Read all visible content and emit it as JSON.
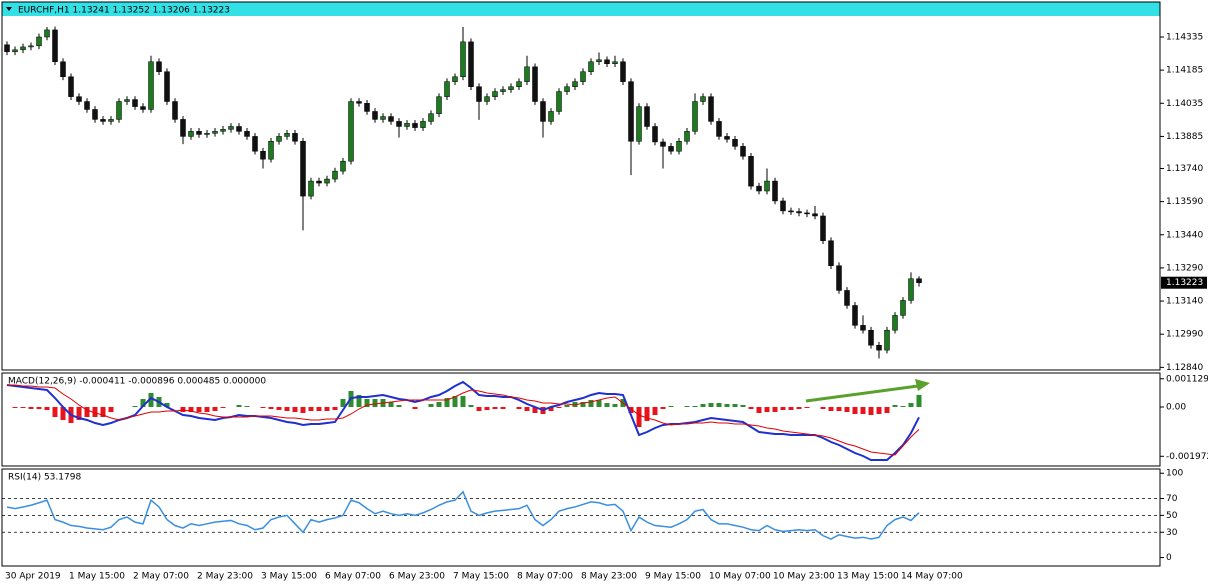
{
  "chart_data": [
    {
      "type": "candlestick",
      "title": "EURCHF,H1  1.13241 1.13252 1.13206 1.13223",
      "categories": [
        "30 Apr 2019",
        null,
        null,
        null,
        null,
        null,
        null,
        null,
        "1 May 15:00",
        null,
        null,
        null,
        null,
        null,
        null,
        null,
        "2 May 07:00",
        null,
        null,
        null,
        null,
        null,
        null,
        null,
        "2 May 23:00",
        null,
        null,
        null,
        null,
        null,
        null,
        null,
        "3 May 15:00",
        null,
        null,
        null,
        null,
        null,
        null,
        null,
        "6 May 07:00",
        null,
        null,
        null,
        null,
        null,
        null,
        null,
        "6 May 23:00",
        null,
        null,
        null,
        null,
        null,
        null,
        null,
        "7 May 15:00",
        null,
        null,
        null,
        null,
        null,
        null,
        null,
        "8 May 07:00",
        null,
        null,
        null,
        null,
        null,
        null,
        null,
        "8 May 23:00",
        null,
        null,
        null,
        null,
        null,
        null,
        null,
        "9 May 15:00",
        null,
        null,
        null,
        null,
        null,
        null,
        null,
        "10 May 07:00",
        null,
        null,
        null,
        null,
        null,
        null,
        null,
        "10 May 23:00",
        null,
        null,
        null,
        null,
        null,
        null,
        null,
        "13 May 15:00",
        null,
        null,
        null,
        null,
        null,
        null,
        null,
        "14 May 07:00",
        null,
        null
      ],
      "open": [
        1.143,
        1.14268,
        1.14277,
        1.1429,
        1.14295,
        1.14335,
        1.14367,
        1.14223,
        1.14155,
        1.14065,
        1.14043,
        1.14007,
        1.13962,
        1.13953,
        1.13962,
        1.14043,
        1.14052,
        1.1402,
        1.14007,
        1.14223,
        1.14178,
        1.14043,
        1.13962,
        1.13885,
        1.13908,
        1.13894,
        1.13899,
        1.13908,
        1.13917,
        1.1393,
        1.13908,
        1.13885,
        1.13818,
        1.13782,
        1.13863,
        1.13885,
        1.13899,
        1.13863,
        1.13615,
        1.13683,
        1.13674,
        1.13692,
        1.13728,
        1.13773,
        1.14043,
        1.14035,
        1.13998,
        1.13962,
        1.13975,
        1.13953,
        1.1393,
        1.13944,
        1.13925,
        1.13953,
        1.13988,
        1.14065,
        1.14133,
        1.14155,
        1.14313,
        1.1411,
        1.14043,
        1.14065,
        1.14088,
        1.14097,
        1.1411,
        1.14133,
        1.142,
        1.14043,
        1.13953,
        1.13998,
        1.14088,
        1.1411,
        1.14133,
        1.14178,
        1.14223,
        1.14232,
        1.14214,
        1.14223,
        1.14133,
        1.13863,
        1.1402,
        1.1393,
        1.1386,
        1.1384,
        1.13818,
        1.13863,
        1.13908,
        1.14043,
        1.14065,
        1.13953,
        1.13885,
        1.13872,
        1.1384,
        1.13795,
        1.1366,
        1.13638,
        1.13683,
        1.13593,
        1.13548,
        1.13545,
        1.13539,
        1.13535,
        1.13525,
        1.13413,
        1.133,
        1.13188,
        1.1312,
        1.1303,
        1.13008,
        1.1294,
        1.12918,
        1.13008,
        1.13075,
        1.13143,
        1.13241
      ],
      "high": [
        1.14315,
        1.14292,
        1.14305,
        1.1431,
        1.1435,
        1.1438,
        1.14382,
        1.14238,
        1.1417,
        1.1408,
        1.14058,
        1.14022,
        1.13977,
        1.13977,
        1.14058,
        1.14067,
        1.14067,
        1.14035,
        1.1425,
        1.14238,
        1.14193,
        1.14058,
        1.13977,
        1.13923,
        1.13923,
        1.13914,
        1.13923,
        1.13932,
        1.13945,
        1.13945,
        1.13923,
        1.139,
        1.13833,
        1.13878,
        1.139,
        1.13914,
        1.13914,
        1.13878,
        1.13698,
        1.13698,
        1.13707,
        1.13743,
        1.13788,
        1.14058,
        1.14058,
        1.1405,
        1.14013,
        1.1399,
        1.1399,
        1.13968,
        1.13959,
        1.13959,
        1.13968,
        1.14003,
        1.1408,
        1.14148,
        1.1417,
        1.1438,
        1.14328,
        1.14125,
        1.1408,
        1.14103,
        1.14112,
        1.14125,
        1.14148,
        1.1425,
        1.14215,
        1.14058,
        1.14013,
        1.14103,
        1.14125,
        1.14148,
        1.14193,
        1.14238,
        1.14265,
        1.14247,
        1.1425,
        1.14238,
        1.14148,
        1.14035,
        1.14035,
        1.13945,
        1.13875,
        1.13855,
        1.13878,
        1.13923,
        1.1408,
        1.1408,
        1.1408,
        1.13968,
        1.139,
        1.13887,
        1.13855,
        1.1381,
        1.13675,
        1.1374,
        1.13698,
        1.13608,
        1.13563,
        1.1356,
        1.13554,
        1.1357,
        1.1354,
        1.13428,
        1.13315,
        1.13203,
        1.13135,
        1.13075,
        1.13023,
        1.12955,
        1.13023,
        1.1309,
        1.13158,
        1.1327,
        1.13252
      ],
      "low": [
        1.14253,
        1.14253,
        1.14262,
        1.14275,
        1.1428,
        1.1432,
        1.14208,
        1.1414,
        1.1405,
        1.14028,
        1.13992,
        1.13947,
        1.13938,
        1.13938,
        1.13947,
        1.14028,
        1.14005,
        1.13992,
        1.13992,
        1.14163,
        1.14028,
        1.13947,
        1.1385,
        1.1387,
        1.13879,
        1.13879,
        1.13884,
        1.13893,
        1.13902,
        1.13893,
        1.1387,
        1.13803,
        1.1374,
        1.13767,
        1.13848,
        1.1387,
        1.13848,
        1.1346,
        1.136,
        1.13659,
        1.13659,
        1.13677,
        1.13713,
        1.13758,
        1.1402,
        1.13983,
        1.13947,
        1.13947,
        1.13938,
        1.1388,
        1.13915,
        1.1391,
        1.1391,
        1.13938,
        1.13973,
        1.1405,
        1.14118,
        1.1414,
        1.14095,
        1.1396,
        1.14028,
        1.1405,
        1.14073,
        1.14082,
        1.14095,
        1.14118,
        1.14028,
        1.1388,
        1.13938,
        1.13983,
        1.14073,
        1.14095,
        1.14118,
        1.14163,
        1.14208,
        1.14199,
        1.14199,
        1.14118,
        1.1371,
        1.13848,
        1.13915,
        1.13845,
        1.1374,
        1.13803,
        1.13803,
        1.13848,
        1.13893,
        1.14028,
        1.13938,
        1.1387,
        1.13857,
        1.13825,
        1.1378,
        1.13645,
        1.13623,
        1.13623,
        1.13578,
        1.13533,
        1.1353,
        1.13524,
        1.1352,
        1.1351,
        1.13398,
        1.13285,
        1.13173,
        1.13105,
        1.13015,
        1.12993,
        1.12925,
        1.1288,
        1.12903,
        1.12993,
        1.1306,
        1.13128,
        1.13206
      ],
      "close": [
        1.14268,
        1.14277,
        1.1429,
        1.14295,
        1.14335,
        1.14367,
        1.14223,
        1.14155,
        1.14065,
        1.14043,
        1.14007,
        1.13962,
        1.13953,
        1.13962,
        1.14043,
        1.14052,
        1.1402,
        1.14007,
        1.14223,
        1.14178,
        1.14043,
        1.13962,
        1.13885,
        1.13908,
        1.13894,
        1.13899,
        1.13908,
        1.13917,
        1.1393,
        1.13908,
        1.13885,
        1.13818,
        1.13782,
        1.13863,
        1.13885,
        1.13899,
        1.13863,
        1.13615,
        1.13683,
        1.13674,
        1.13692,
        1.13728,
        1.13773,
        1.14043,
        1.14035,
        1.13998,
        1.13962,
        1.13975,
        1.13953,
        1.1393,
        1.13944,
        1.13925,
        1.13953,
        1.13988,
        1.14065,
        1.14133,
        1.14155,
        1.14313,
        1.1411,
        1.14043,
        1.14065,
        1.14088,
        1.14097,
        1.1411,
        1.14133,
        1.142,
        1.14043,
        1.13953,
        1.13998,
        1.14088,
        1.1411,
        1.14133,
        1.14178,
        1.14223,
        1.14232,
        1.14214,
        1.14223,
        1.14133,
        1.13863,
        1.1402,
        1.1393,
        1.1386,
        1.1384,
        1.13818,
        1.13863,
        1.13908,
        1.14043,
        1.14065,
        1.13953,
        1.13885,
        1.13872,
        1.1384,
        1.13795,
        1.1366,
        1.13638,
        1.13683,
        1.13593,
        1.13548,
        1.13545,
        1.13539,
        1.13535,
        1.13525,
        1.13413,
        1.133,
        1.13188,
        1.1312,
        1.1303,
        1.13008,
        1.1294,
        1.12918,
        1.13008,
        1.13075,
        1.13143,
        1.13241,
        1.13223
      ],
      "bull_color": "#1e7a1e",
      "bear_color": "#111111",
      "ylim": [
        1.12828,
        1.1443
      ],
      "yticks": [
        1.14335,
        1.14185,
        1.14035,
        1.13885,
        {
          "value": 1.1374,
          "label": "1.13740"
        },
        {
          "value": 1.1359,
          "label": "1.13590"
        },
        {
          "value": 1.1344,
          "label": "1.13440"
        },
        {
          "value": 1.1329,
          "label": "1.13290"
        },
        {
          "value": 1.1314,
          "label": "1.13140"
        },
        {
          "value": 1.1299,
          "label": "1.12990"
        },
        {
          "value": 1.1284,
          "label": "1.12840"
        }
      ]
    },
    {
      "type": "macd",
      "title": "MACD(12,26,9) -0.000411 -0.000896 0.000485 0.000000",
      "histogram": {
        "color_up": "#2e8b2e",
        "color_down": "#e8141c",
        "values": [
          0,
          -4e-05,
          -4e-05,
          -8e-05,
          -8e-05,
          -0.00012,
          -0.0004,
          -0.00052,
          -0.00064,
          -0.00052,
          -0.0004,
          -0.0004,
          -0.0004,
          -0.0002,
          0,
          0,
          4e-05,
          0.00032,
          0.00056,
          0.0004,
          0.00016,
          0,
          -0.0002,
          -0.0002,
          -0.0002,
          -0.0002,
          -0.00016,
          -4e-05,
          0,
          8e-05,
          4e-05,
          0,
          -4e-05,
          -8e-05,
          -0.00012,
          -0.00016,
          -0.0002,
          -0.00024,
          -0.00016,
          -0.00016,
          -0.00016,
          -0.00012,
          0.00032,
          0.00064,
          0.00048,
          0.00032,
          0.00032,
          0.00032,
          0.0002,
          8e-05,
          0,
          -8e-05,
          0,
          0.00012,
          0.0002,
          0.00036,
          0.00044,
          0.00044,
          8e-05,
          -0.00016,
          -0.00012,
          -8e-05,
          -8e-05,
          0,
          -8e-05,
          -0.00016,
          -0.00024,
          -0.00028,
          -0.00016,
          -4e-05,
          8e-05,
          0.0002,
          0.0002,
          0.00028,
          0.00028,
          0.00016,
          0.00012,
          0.00032,
          -0.00024,
          -0.0008,
          -0.00056,
          -0.00032,
          -8e-05,
          4e-05,
          0,
          4e-05,
          4e-05,
          0.00012,
          0.00016,
          0.00016,
          0.00012,
          0.00012,
          8e-05,
          -8e-05,
          -0.00024,
          -0.0002,
          -0.0002,
          -0.00012,
          -0.00012,
          -8e-05,
          -4e-05,
          0,
          -8e-05,
          -0.00016,
          -0.00016,
          -0.0002,
          -0.00028,
          -0.00028,
          -0.00032,
          -0.00028,
          -0.00024,
          8e-05,
          4e-05,
          0.00016,
          0.000485
        ]
      },
      "series": [
        {
          "color": "#1f2fd0",
          "values": [
            0.00088,
            0.00084,
            0.0008,
            0.00076,
            0.00072,
            0.00068,
            0.00036,
            0,
            -0.00032,
            -0.00044,
            -0.00052,
            -0.00064,
            -0.00072,
            -0.00064,
            -0.00052,
            -0.00044,
            -0.00032,
            4e-05,
            0.00036,
            0.0002,
            0,
            -0.00016,
            -0.00032,
            -0.00036,
            -0.00044,
            -0.00048,
            -0.00052,
            -0.00044,
            -0.0004,
            -0.00032,
            -0.00036,
            -0.00036,
            -0.0004,
            -0.00044,
            -0.00052,
            -0.0006,
            -0.00064,
            -0.00072,
            -0.00068,
            -0.00068,
            -0.00064,
            -0.0006,
            -0.00012,
            0.00036,
            0.0004,
            0.0004,
            0.00044,
            0.00048,
            0.0004,
            0.00032,
            0.00028,
            0.0002,
            0.00028,
            0.0004,
            0.00048,
            0.00064,
            0.00084,
            0.001,
            0.00076,
            0.00048,
            0.00044,
            0.00044,
            0.0004,
            0.0004,
            0.00028,
            0.00012,
            0,
            -0.00012,
            0,
            8e-05,
            0.0002,
            0.00028,
            0.00036,
            0.00048,
            0.00056,
            0.00052,
            0.00052,
            0.00048,
            -0.00032,
            -0.00112,
            -0.001,
            -0.00084,
            -0.00072,
            -0.00068,
            -0.00068,
            -0.00064,
            -0.0006,
            -0.00052,
            -0.00044,
            -0.00048,
            -0.00052,
            -0.00056,
            -0.0006,
            -0.0008,
            -0.001,
            -0.00104,
            -0.00108,
            -0.00108,
            -0.00112,
            -0.00112,
            -0.00112,
            -0.00112,
            -0.00124,
            -0.0014,
            -0.00152,
            -0.00168,
            -0.00184,
            -0.00196,
            -0.00212,
            -0.00212,
            -0.00212,
            -0.00184,
            -0.00152,
            -0.00104,
            -0.000411
          ]
        },
        {
          "color": "#e00000",
          "values": [
            0.00088,
            0.00088,
            0.00084,
            0.00084,
            0.0008,
            0.0008,
            0.00076,
            0.00052,
            0.00032,
            8e-05,
            -0.00012,
            -0.00024,
            -0.00032,
            -0.00044,
            -0.00052,
            -0.00044,
            -0.00036,
            -0.00028,
            -0.0002,
            -0.0002,
            -0.00016,
            -0.00016,
            -0.00012,
            -0.00016,
            -0.00024,
            -0.00028,
            -0.00036,
            -0.0004,
            -0.0004,
            -0.0004,
            -0.0004,
            -0.00036,
            -0.00036,
            -0.00036,
            -0.0004,
            -0.00044,
            -0.00044,
            -0.00048,
            -0.00052,
            -0.00052,
            -0.00048,
            -0.00048,
            -0.00044,
            -0.00028,
            -8e-05,
            8e-05,
            0.00012,
            0.00016,
            0.0002,
            0.00024,
            0.00028,
            0.00028,
            0.00028,
            0.00028,
            0.00028,
            0.00028,
            0.0004,
            0.00056,
            0.00068,
            0.00064,
            0.00056,
            0.00052,
            0.00048,
            0.0004,
            0.00036,
            0.00028,
            0.00024,
            0.00016,
            0.00016,
            0.00012,
            0.00012,
            8e-05,
            0.00016,
            0.0002,
            0.00028,
            0.00036,
            0.0004,
            0.00016,
            -8e-05,
            -0.00032,
            -0.00044,
            -0.00052,
            -0.00064,
            -0.00072,
            -0.00068,
            -0.00068,
            -0.00064,
            -0.00064,
            -0.0006,
            -0.00064,
            -0.00064,
            -0.00068,
            -0.00068,
            -0.00072,
            -0.00076,
            -0.00084,
            -0.00088,
            -0.00096,
            -0.001,
            -0.00104,
            -0.00108,
            -0.00112,
            -0.00116,
            -0.00124,
            -0.00136,
            -0.00148,
            -0.00156,
            -0.00168,
            -0.0018,
            -0.00184,
            -0.00188,
            -0.00192,
            -0.00156,
            -0.0012,
            -0.000896
          ]
        }
      ],
      "ylim": [
        -0.00236,
        0.00136
      ],
      "yticks": [
        0.001129,
        {
          "value": 0,
          "label": "0.00"
        },
        -0.001972
      ]
    },
    {
      "type": "line",
      "title": "RSI(14) 53.1798",
      "color": "#3a8fe0",
      "values": [
        60,
        58,
        60,
        62,
        65,
        68,
        45,
        42,
        38,
        37,
        35,
        34,
        33,
        36,
        45,
        48,
        42,
        40,
        68,
        60,
        45,
        38,
        35,
        40,
        38,
        40,
        42,
        43,
        44,
        40,
        38,
        33,
        35,
        45,
        48,
        50,
        40,
        30,
        45,
        42,
        45,
        47,
        50,
        68,
        65,
        58,
        52,
        55,
        52,
        50,
        52,
        50,
        53,
        57,
        62,
        66,
        68,
        78,
        55,
        50,
        53,
        55,
        56,
        57,
        58,
        62,
        45,
        38,
        45,
        55,
        58,
        60,
        63,
        66,
        65,
        62,
        63,
        55,
        32,
        48,
        42,
        38,
        37,
        36,
        40,
        45,
        55,
        57,
        45,
        40,
        40,
        38,
        36,
        33,
        32,
        38,
        33,
        31,
        32,
        33,
        32,
        33,
        26,
        22,
        27,
        25,
        23,
        24,
        22,
        24,
        38,
        45,
        48,
        44,
        53.1798
      ],
      "ylim": [
        -10,
        105
      ],
      "yticks": [
        100,
        70,
        50,
        30,
        0
      ],
      "levels": [
        70,
        50,
        30
      ]
    }
  ]
}
